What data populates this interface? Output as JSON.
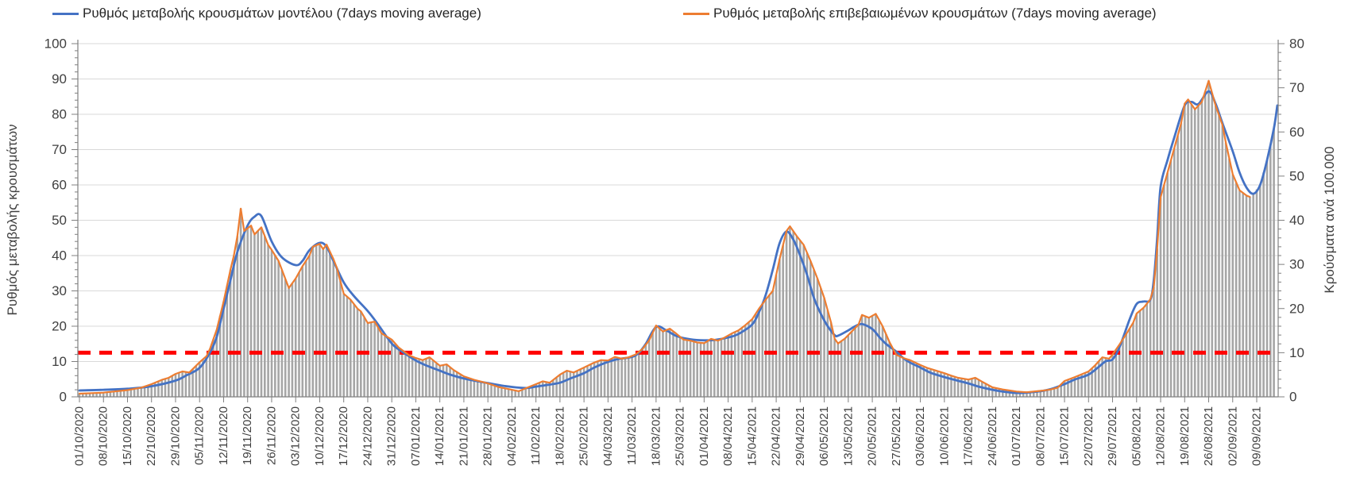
{
  "chart_data": {
    "type": "combo",
    "legend_position": "top",
    "grid": "horizontal-only",
    "start_date": "01/10/2020",
    "x_labels": [
      "01/10/2020",
      "08/10/2020",
      "15/10/2020",
      "22/10/2020",
      "29/10/2020",
      "05/11/2020",
      "12/11/2020",
      "19/11/2020",
      "26/11/2020",
      "03/12/2020",
      "10/12/2020",
      "17/12/2020",
      "24/12/2020",
      "31/12/2020",
      "07/01/2021",
      "14/01/2021",
      "21/01/2021",
      "28/01/2021",
      "04/02/2021",
      "11/02/2021",
      "18/02/2021",
      "25/02/2021",
      "04/03/2021",
      "11/03/2021",
      "18/03/2021",
      "25/03/2021",
      "01/04/2021",
      "08/04/2021",
      "15/04/2021",
      "22/04/2021",
      "29/04/2021",
      "06/05/2021",
      "13/05/2021",
      "20/05/2021",
      "27/05/2021",
      "03/06/2021",
      "10/06/2021",
      "17/06/2021",
      "24/06/2021",
      "01/07/2021",
      "08/07/2021",
      "15/07/2021",
      "22/07/2021",
      "29/07/2021",
      "05/08/2021",
      "12/08/2021",
      "19/08/2021",
      "26/08/2021",
      "02/09/2021",
      "09/09/2021"
    ],
    "x_label_interval_days": 7,
    "y_left": {
      "label": "Ρυθμός μεταβολής κρουσμάτων",
      "min": 0,
      "max": 100,
      "ticks": [
        0,
        10,
        20,
        30,
        40,
        50,
        60,
        70,
        80,
        90,
        100
      ],
      "minor_step": 2
    },
    "y_right": {
      "label": "Κρούσματα ανά 100.000",
      "min": 0,
      "max": 80,
      "ticks": [
        0,
        10,
        20,
        30,
        40,
        50,
        60,
        70,
        80
      ],
      "minor_step": 2
    },
    "threshold_line": {
      "left_value": 12.5,
      "right_value": 10,
      "color": "#FF0000",
      "style": "dashed"
    },
    "bars": {
      "semantic": "daily-cases-per-100000",
      "axis": "right",
      "color": "#A6A6A6",
      "note": "bar height equals 0.8 x line value (same pixel height as lines); follows confirmed line, then model line after it ends",
      "start_day": 0,
      "end_day": 348
    },
    "series": [
      {
        "name": "Ρυθμός μεταβολής κρουσμάτων μοντέλου (7days moving average)",
        "color": "#4472C4",
        "style": "smooth",
        "axis": "left",
        "anchors": [
          [
            0,
            1.8
          ],
          [
            7,
            2
          ],
          [
            14,
            2.3
          ],
          [
            21,
            3
          ],
          [
            28,
            4.6
          ],
          [
            31,
            6
          ],
          [
            35,
            8.2
          ],
          [
            38,
            12.5
          ],
          [
            40,
            17
          ],
          [
            42,
            25
          ],
          [
            44,
            33
          ],
          [
            46,
            41
          ],
          [
            49,
            48.5
          ],
          [
            51,
            51
          ],
          [
            53,
            51.2
          ],
          [
            56,
            44
          ],
          [
            59,
            39.5
          ],
          [
            63,
            37.3
          ],
          [
            65,
            38.5
          ],
          [
            67,
            41.5
          ],
          [
            70,
            43.6
          ],
          [
            72,
            42.5
          ],
          [
            74,
            38.5
          ],
          [
            77,
            32.4
          ],
          [
            80,
            28.5
          ],
          [
            84,
            24.3
          ],
          [
            87,
            20.5
          ],
          [
            91,
            15.1
          ],
          [
            94,
            12.8
          ],
          [
            98,
            10.3
          ],
          [
            101,
            8.9
          ],
          [
            105,
            7.4
          ],
          [
            108,
            6.3
          ],
          [
            112,
            5.2
          ],
          [
            116,
            4.4
          ],
          [
            119,
            3.9
          ],
          [
            123,
            3.2
          ],
          [
            126,
            2.8
          ],
          [
            130,
            2.5
          ],
          [
            133,
            2.9
          ],
          [
            136,
            3.3
          ],
          [
            140,
            4
          ],
          [
            143,
            5.2
          ],
          [
            147,
            6.7
          ],
          [
            150,
            8.3
          ],
          [
            154,
            9.9
          ],
          [
            157,
            10.7
          ],
          [
            161,
            11.3
          ],
          [
            163,
            12.5
          ],
          [
            165,
            15
          ],
          [
            168,
            19.8
          ],
          [
            171,
            18.8
          ],
          [
            174,
            17.2
          ],
          [
            178,
            16.3
          ],
          [
            182,
            16
          ],
          [
            185,
            16.1
          ],
          [
            189,
            16.8
          ],
          [
            192,
            17.8
          ],
          [
            196,
            20.5
          ],
          [
            198,
            24
          ],
          [
            200,
            29
          ],
          [
            202,
            36
          ],
          [
            204,
            43.5
          ],
          [
            206,
            46.8
          ],
          [
            208,
            44.5
          ],
          [
            210,
            40
          ],
          [
            212,
            34.5
          ],
          [
            214,
            28
          ],
          [
            216,
            23.5
          ],
          [
            218,
            20
          ],
          [
            220,
            17.5
          ],
          [
            221,
            17.3
          ],
          [
            224,
            18.8
          ],
          [
            226,
            20
          ],
          [
            228,
            20.6
          ],
          [
            231,
            19.2
          ],
          [
            233,
            17
          ],
          [
            235,
            15
          ],
          [
            238,
            12.8
          ],
          [
            240,
            11
          ],
          [
            242,
            9.7
          ],
          [
            245,
            8.3
          ],
          [
            248,
            6.8
          ],
          [
            252,
            5.6
          ],
          [
            255,
            4.8
          ],
          [
            259,
            3.8
          ],
          [
            262,
            2.9
          ],
          [
            266,
            2
          ],
          [
            269,
            1.5
          ],
          [
            273,
            1.1
          ],
          [
            276,
            1.2
          ],
          [
            280,
            1.6
          ],
          [
            283,
            2.2
          ],
          [
            287,
            3.6
          ],
          [
            290,
            4.9
          ],
          [
            294,
            6.3
          ],
          [
            297,
            8.5
          ],
          [
            299,
            10.1
          ],
          [
            301,
            10.6
          ],
          [
            303,
            14
          ],
          [
            306,
            22
          ],
          [
            308,
            26.3
          ],
          [
            310,
            27
          ],
          [
            312,
            27.5
          ],
          [
            313,
            33
          ],
          [
            314,
            45
          ],
          [
            315,
            59.5
          ],
          [
            317,
            67
          ],
          [
            319,
            73.5
          ],
          [
            322,
            82.5
          ],
          [
            324,
            83.5
          ],
          [
            326,
            82.9
          ],
          [
            329,
            86.5
          ],
          [
            331,
            83
          ],
          [
            333,
            77.5
          ],
          [
            336,
            69.5
          ],
          [
            338,
            63.5
          ],
          [
            340,
            59.3
          ],
          [
            342,
            57.5
          ],
          [
            344,
            60
          ],
          [
            346,
            67
          ],
          [
            348,
            76
          ],
          [
            349,
            82.5
          ]
        ]
      },
      {
        "name": "Ρυθμός μεταβολής επιβεβαιωμένων κρουσμάτων (7days moving average)",
        "color": "#ED7D31",
        "style": "jagged",
        "axis": "left",
        "end_day": 341,
        "anchors": [
          [
            0,
            0.9
          ],
          [
            7,
            1.2
          ],
          [
            14,
            1.9
          ],
          [
            18,
            2.6
          ],
          [
            21,
            3.6
          ],
          [
            24,
            4.8
          ],
          [
            26,
            5.4
          ],
          [
            28,
            6.5
          ],
          [
            30,
            7.2
          ],
          [
            32,
            6.9
          ],
          [
            35,
            9.8
          ],
          [
            37,
            11.5
          ],
          [
            38,
            13.5
          ],
          [
            40,
            19
          ],
          [
            42,
            27
          ],
          [
            44,
            36
          ],
          [
            45,
            40
          ],
          [
            46,
            45.5
          ],
          [
            47,
            53.3
          ],
          [
            48,
            47
          ],
          [
            50,
            48.5
          ],
          [
            51,
            46
          ],
          [
            53,
            48
          ],
          [
            55,
            43
          ],
          [
            56,
            41.6
          ],
          [
            58,
            38.5
          ],
          [
            61,
            30.8
          ],
          [
            63,
            33.5
          ],
          [
            65,
            37
          ],
          [
            67,
            40
          ],
          [
            68,
            42.5
          ],
          [
            70,
            43.3
          ],
          [
            71,
            41.8
          ],
          [
            72,
            43.1
          ],
          [
            74,
            39
          ],
          [
            75,
            36.5
          ],
          [
            77,
            29.2
          ],
          [
            79,
            27.5
          ],
          [
            81,
            25
          ],
          [
            82,
            24.2
          ],
          [
            84,
            20.9
          ],
          [
            86,
            21.3
          ],
          [
            88,
            18
          ],
          [
            91,
            16.2
          ],
          [
            93,
            14
          ],
          [
            96,
            11.8
          ],
          [
            98,
            11
          ],
          [
            100,
            10.4
          ],
          [
            102,
            11.2
          ],
          [
            104,
            9.6
          ],
          [
            105,
            8.8
          ],
          [
            107,
            9.2
          ],
          [
            109,
            7.6
          ],
          [
            112,
            5.8
          ],
          [
            115,
            4.8
          ],
          [
            119,
            3.8
          ],
          [
            122,
            2.8
          ],
          [
            125,
            2.2
          ],
          [
            128,
            1.6
          ],
          [
            131,
            2.8
          ],
          [
            133,
            3.6
          ],
          [
            135,
            4.4
          ],
          [
            137,
            4
          ],
          [
            140,
            6.3
          ],
          [
            142,
            7.4
          ],
          [
            144,
            6.9
          ],
          [
            147,
            8.3
          ],
          [
            150,
            9.7
          ],
          [
            152,
            10.4
          ],
          [
            154,
            10.3
          ],
          [
            156,
            11.3
          ],
          [
            158,
            10.8
          ],
          [
            160,
            11.2
          ],
          [
            162,
            12
          ],
          [
            164,
            13.5
          ],
          [
            166,
            16
          ],
          [
            168,
            20.2
          ],
          [
            170,
            18.5
          ],
          [
            172,
            19.3
          ],
          [
            174,
            17.8
          ],
          [
            176,
            16.2
          ],
          [
            178,
            15.9
          ],
          [
            180,
            15.4
          ],
          [
            182,
            15.2
          ],
          [
            184,
            16.4
          ],
          [
            186,
            15.9
          ],
          [
            188,
            16.8
          ],
          [
            190,
            17.9
          ],
          [
            192,
            18.8
          ],
          [
            194,
            20.3
          ],
          [
            196,
            22
          ],
          [
            198,
            25
          ],
          [
            200,
            27.6
          ],
          [
            202,
            30
          ],
          [
            204,
            39
          ],
          [
            206,
            47
          ],
          [
            207,
            48.3
          ],
          [
            209,
            45.5
          ],
          [
            211,
            43
          ],
          [
            213,
            38.5
          ],
          [
            215,
            33.5
          ],
          [
            217,
            28
          ],
          [
            219,
            21
          ],
          [
            220,
            16.5
          ],
          [
            221,
            15.1
          ],
          [
            223,
            16.5
          ],
          [
            225,
            18.5
          ],
          [
            227,
            20.5
          ],
          [
            228,
            23.2
          ],
          [
            230,
            22.4
          ],
          [
            232,
            23.5
          ],
          [
            234,
            20
          ],
          [
            236,
            15.5
          ],
          [
            238,
            11.9
          ],
          [
            240,
            11
          ],
          [
            242,
            10.4
          ],
          [
            245,
            9
          ],
          [
            247,
            8.2
          ],
          [
            249,
            7.6
          ],
          [
            252,
            6.7
          ],
          [
            254,
            6
          ],
          [
            256,
            5.4
          ],
          [
            259,
            4.9
          ],
          [
            261,
            5.4
          ],
          [
            263,
            4.3
          ],
          [
            266,
            2.7
          ],
          [
            269,
            2.1
          ],
          [
            271,
            1.8
          ],
          [
            273,
            1.5
          ],
          [
            276,
            1.3
          ],
          [
            279,
            1.6
          ],
          [
            281,
            1.8
          ],
          [
            283,
            2.1
          ],
          [
            285,
            2.6
          ],
          [
            287,
            4.5
          ],
          [
            290,
            5.6
          ],
          [
            294,
            7.2
          ],
          [
            296,
            9
          ],
          [
            298,
            11.2
          ],
          [
            300,
            10.8
          ],
          [
            301,
            12
          ],
          [
            303,
            14.8
          ],
          [
            305,
            17.8
          ],
          [
            307,
            21
          ],
          [
            308,
            23.6
          ],
          [
            310,
            25.2
          ],
          [
            312,
            27.6
          ],
          [
            313,
            31
          ],
          [
            314,
            42
          ],
          [
            315,
            56.5
          ],
          [
            317,
            63.5
          ],
          [
            319,
            70.5
          ],
          [
            321,
            77.5
          ],
          [
            322,
            83
          ],
          [
            323,
            84.2
          ],
          [
            325,
            81.4
          ],
          [
            327,
            83.5
          ],
          [
            329,
            89.5
          ],
          [
            331,
            82.5
          ],
          [
            333,
            77
          ],
          [
            334,
            72
          ],
          [
            336,
            63
          ],
          [
            338,
            58.5
          ],
          [
            340,
            57
          ],
          [
            341,
            56.6
          ]
        ]
      }
    ],
    "colors": {
      "grid": "#D9D9D9",
      "axis": "#808080",
      "tick_label": "#404040",
      "legend_text": "#262626"
    }
  }
}
